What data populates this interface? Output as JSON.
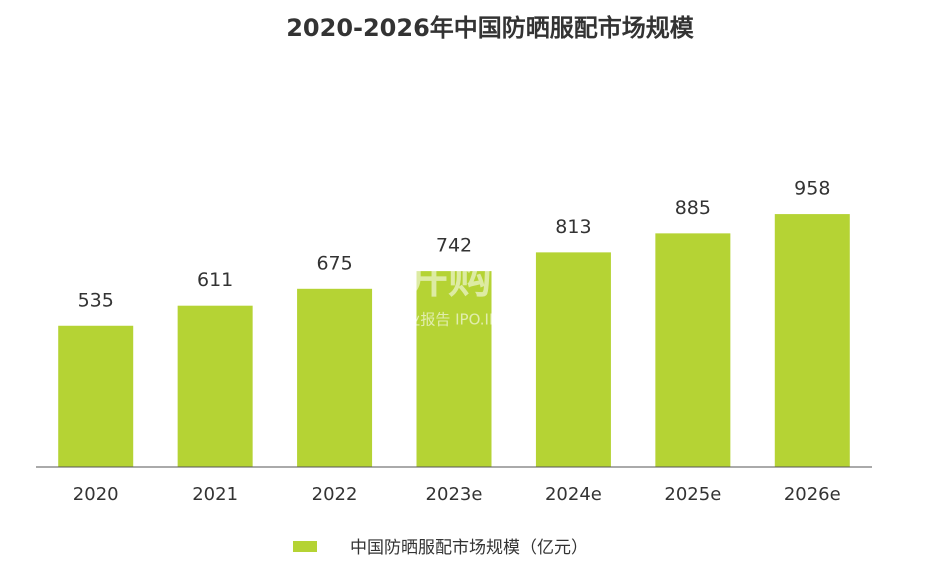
{
  "chart_data": {
    "type": "bar",
    "title": "2020-2026年中国防晒服配市场规模",
    "categories": [
      "2020",
      "2021",
      "2022",
      "2023e",
      "2024e",
      "2025e",
      "2026e"
    ],
    "series": [
      {
        "name": "中国防晒服配市场规模（亿元）",
        "color": "#b5d334",
        "values": [
          535,
          611,
          675,
          742,
          813,
          885,
          958
        ]
      }
    ],
    "ylim": [
      0,
      1000
    ],
    "annotations": [
      "并购家",
      "行业报告 IPO.IPO.CN"
    ],
    "legend": "bottom"
  }
}
